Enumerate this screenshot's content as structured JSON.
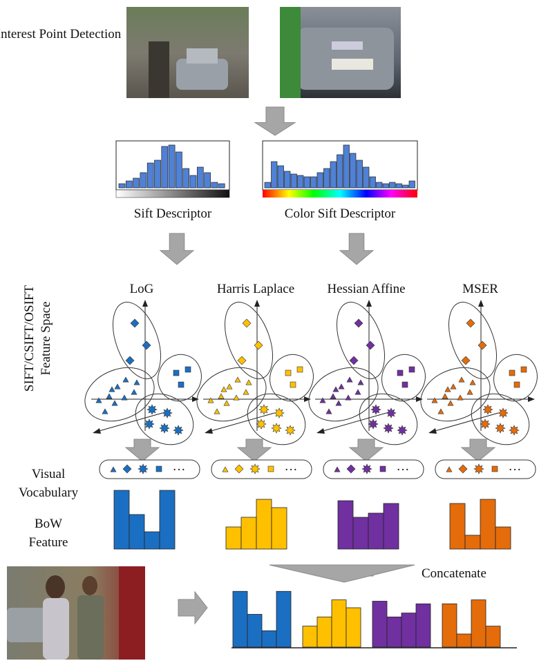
{
  "stage1": {
    "label": "Interest Point Detection"
  },
  "descriptors": [
    "Sift Descriptor",
    "Color Sift Descriptor"
  ],
  "feature_space": {
    "label_line1": "SIFT/CSIFT/OSIFT",
    "label_line2": "Feature Space"
  },
  "detectors": [
    "LoG",
    "Harris Laplace",
    "Hessian Affine",
    "MSER"
  ],
  "vocabulary": {
    "label_line1": "Visual",
    "label_line2": "Vocabulary",
    "ellipsis": "···"
  },
  "bow": {
    "label_line1": "BoW",
    "label_line2": "Feature"
  },
  "concatenate": "Concatenate"
}
